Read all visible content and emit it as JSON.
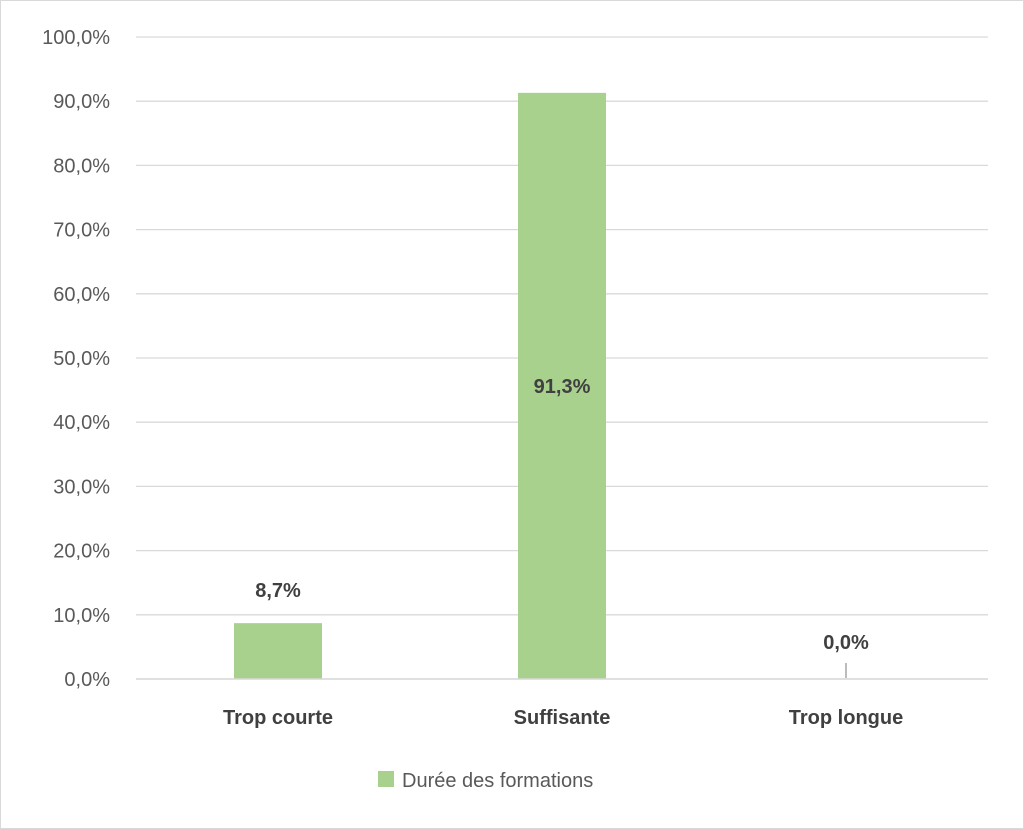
{
  "chart_data": {
    "type": "bar",
    "categories": [
      "Trop courte",
      "Suffisante",
      "Trop longue"
    ],
    "series": [
      {
        "name": "Durée des formations",
        "values": [
          8.7,
          91.3,
          0.0
        ],
        "data_labels": [
          "8,7%",
          "91,3%",
          "0,0%"
        ],
        "color": "#a9d18e"
      }
    ],
    "title": "",
    "xlabel": "",
    "ylabel": "",
    "ylim": [
      0,
      100
    ],
    "yticks": [
      0,
      10,
      20,
      30,
      40,
      50,
      60,
      70,
      80,
      90,
      100
    ],
    "ytick_labels": [
      "0,0%",
      "10,0%",
      "20,0%",
      "30,0%",
      "40,0%",
      "50,0%",
      "60,0%",
      "70,0%",
      "80,0%",
      "90,0%",
      "100,0%"
    ],
    "grid": true,
    "legend_position": "bottom",
    "gridline_color": "#d9d9d9",
    "leader_line_color": "#a6a6a6"
  }
}
